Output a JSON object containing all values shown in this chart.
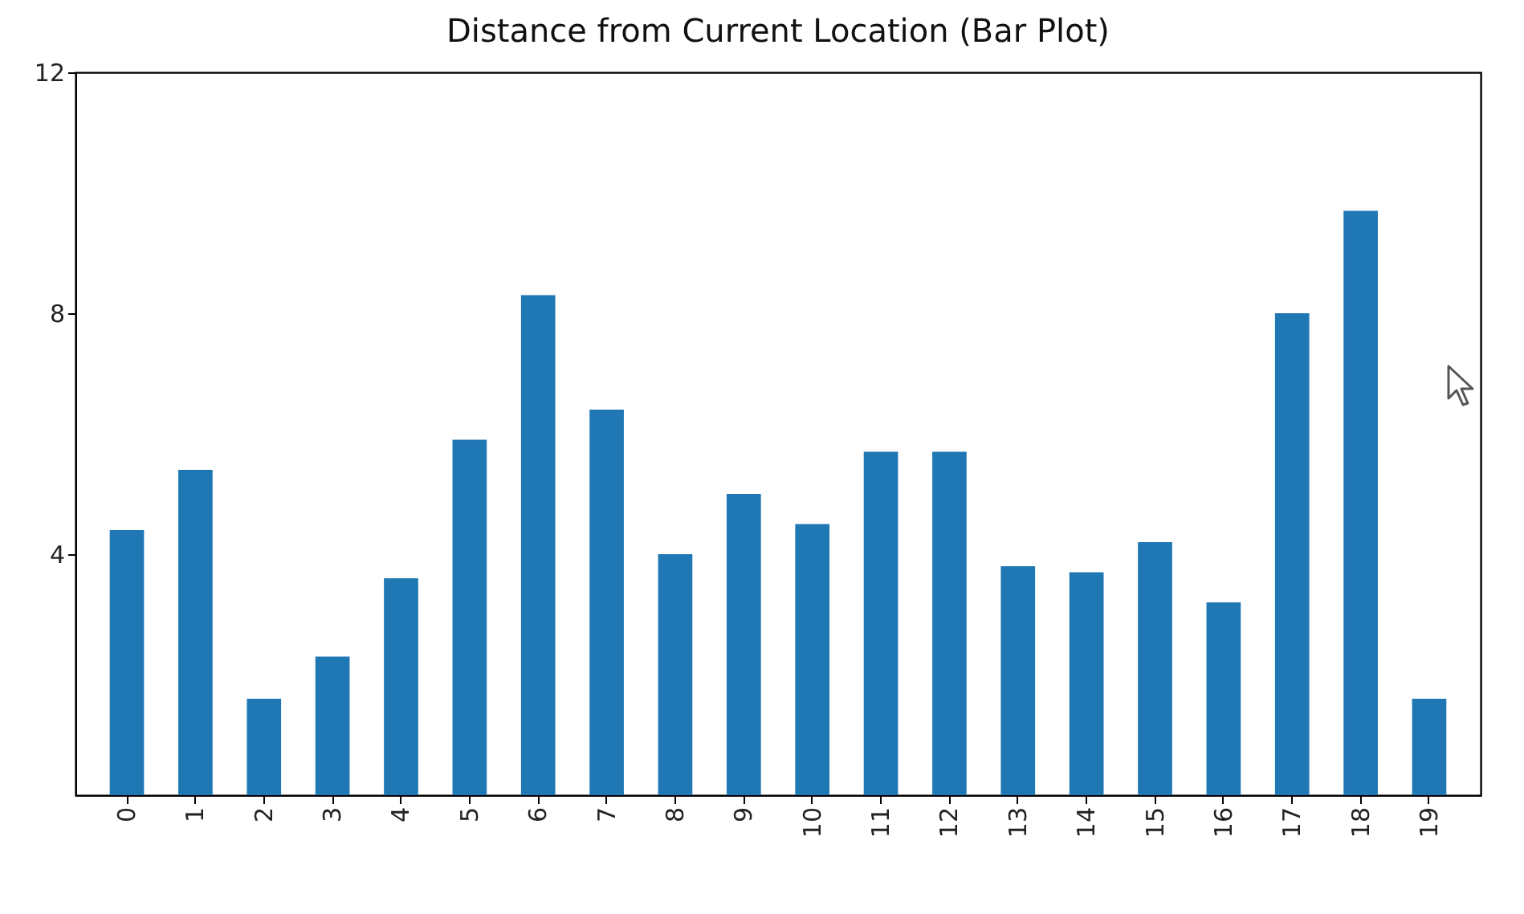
{
  "chart_data": {
    "type": "bar",
    "title": "Distance from Current Location (Bar Plot)",
    "categories": [
      "0",
      "1",
      "2",
      "3",
      "4",
      "5",
      "6",
      "7",
      "8",
      "9",
      "10",
      "11",
      "12",
      "13",
      "14",
      "15",
      "16",
      "17",
      "18",
      "19"
    ],
    "values": [
      4.4,
      5.4,
      1.6,
      2.3,
      3.6,
      5.9,
      8.3,
      6.4,
      4.0,
      5.0,
      4.5,
      5.7,
      5.7,
      3.8,
      3.7,
      4.2,
      3.2,
      8.0,
      9.7,
      1.6
    ],
    "color": "#1f77b4",
    "ylim": [
      0,
      12
    ],
    "yticks": [
      4,
      8,
      12
    ],
    "grid": false
  }
}
